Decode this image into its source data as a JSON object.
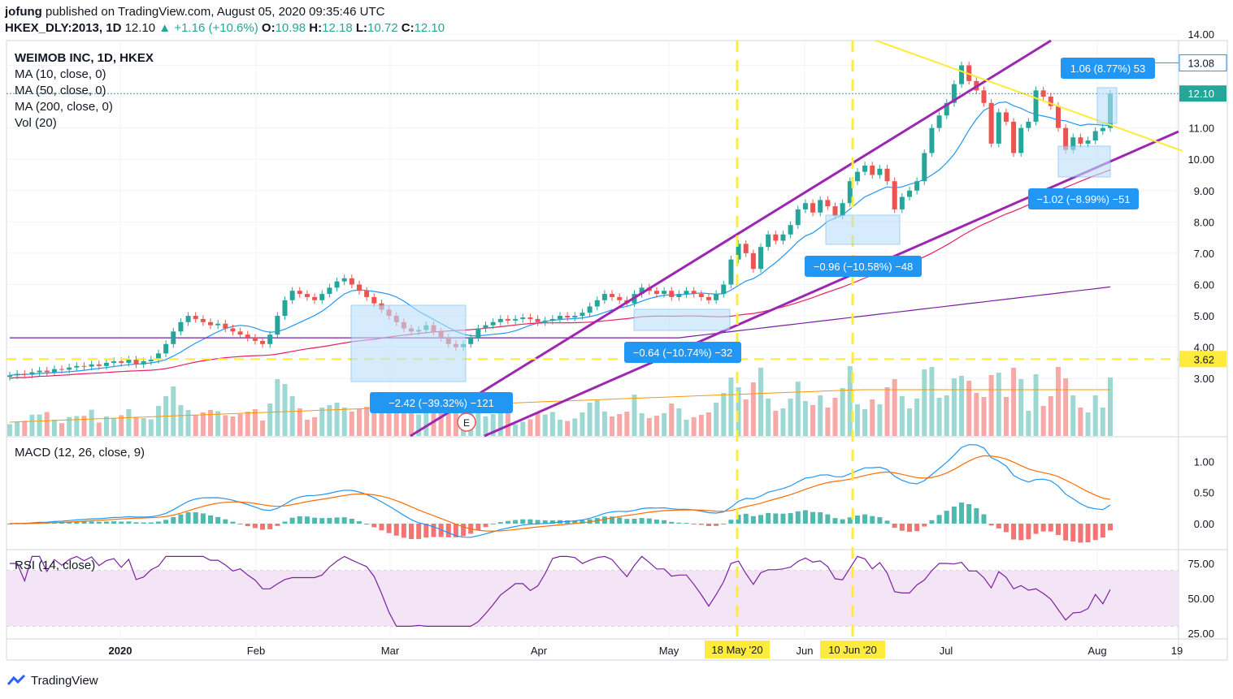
{
  "header": {
    "author": "jofung",
    "published_text": "published on TradingView.com, August 05, 2020 09:35:46 UTC",
    "symbol": "HKEX_DLY:2013, 1D",
    "last": "12.10",
    "change_arrow": "▲",
    "change": "+1.16 (+10.6%)",
    "o_label": "O:",
    "o": "10.98",
    "h_label": "H:",
    "h": "12.18",
    "l_label": "L:",
    "l": "10.72",
    "c_label": "C:",
    "c": "12.10"
  },
  "legend": {
    "title": "WEIMOB INC, 1D, HKEX",
    "ma10": "MA (10, close, 0)",
    "ma50": "MA (50, close, 0)",
    "ma200": "MA (200, close, 0)",
    "vol": "Vol (20)",
    "macd": "MACD (12, 26, close, 9)",
    "rsi": "RSI (14, close)"
  },
  "footer": {
    "brand": "TradingView"
  },
  "colors": {
    "up": "#26a69a",
    "down": "#ef5350",
    "ma10": "#2196f3",
    "ma50": "#e91e63",
    "ma200": "#7b1fa2",
    "trend": "#9c27b0",
    "yellow": "#ffeb3b",
    "macd": "#2196f3",
    "signal": "#ff6d00",
    "rsi": "#7b1fa2"
  },
  "chart_data": {
    "type": "candlestick",
    "title": "WEIMOB INC, 1D, HKEX",
    "price_ticks": [
      "14.00",
      "13.00",
      "12.00",
      "11.00",
      "10.00",
      "9.00",
      "8.00",
      "7.00",
      "6.00",
      "5.00",
      "4.00",
      "3.00"
    ],
    "price_range": [
      2.0,
      14.7
    ],
    "price_labels": [
      {
        "text": "13.08",
        "value": 13.08,
        "color": "#2196f3"
      },
      {
        "text": "12.10",
        "value": 12.1,
        "color": "#26a69a"
      },
      {
        "text": "3.62",
        "value": 3.62,
        "color": "#ffeb3b"
      }
    ],
    "x_ticks": [
      "2020",
      "Feb",
      "Mar",
      "Apr",
      "May",
      "Jun",
      "Jul",
      "Aug",
      "19"
    ],
    "date_labels": [
      "18 May '20",
      "10 Jun '20"
    ],
    "measurements": [
      "−2.42 (−39.32%) −121",
      "−0.64 (−10.74%) −32",
      "−0.96 (−10.58%) −48",
      "−1.02 (−8.99%) −51",
      "1.06 (8.77%) 53"
    ],
    "event_marker": "E",
    "closes": [
      3.1,
      3.15,
      3.12,
      3.2,
      3.25,
      3.2,
      3.3,
      3.28,
      3.35,
      3.4,
      3.38,
      3.45,
      3.4,
      3.5,
      3.55,
      3.5,
      3.6,
      3.45,
      3.55,
      3.6,
      3.8,
      4.1,
      4.5,
      4.8,
      5.0,
      4.9,
      4.8,
      4.7,
      4.75,
      4.6,
      4.5,
      4.4,
      4.3,
      4.2,
      4.1,
      4.4,
      5.0,
      5.5,
      5.8,
      5.7,
      5.6,
      5.5,
      5.7,
      5.9,
      6.1,
      6.2,
      6.0,
      5.8,
      5.6,
      5.4,
      5.2,
      5.0,
      4.8,
      4.6,
      4.5,
      4.55,
      4.7,
      4.5,
      4.3,
      4.1,
      4.0,
      4.1,
      4.3,
      4.6,
      4.7,
      4.8,
      4.9,
      4.85,
      4.9,
      4.95,
      4.9,
      4.8,
      4.85,
      4.9,
      5.0,
      4.95,
      5.0,
      5.1,
      5.3,
      5.5,
      5.7,
      5.6,
      5.5,
      5.4,
      5.7,
      5.9,
      5.8,
      5.7,
      5.8,
      5.6,
      5.7,
      5.8,
      5.7,
      5.6,
      5.5,
      5.7,
      6.0,
      6.8,
      7.3,
      7.0,
      6.5,
      7.2,
      7.6,
      7.4,
      7.6,
      7.9,
      8.4,
      8.6,
      8.3,
      8.7,
      8.5,
      8.2,
      8.6,
      9.3,
      9.6,
      9.8,
      9.5,
      9.7,
      9.3,
      8.4,
      8.8,
      9.0,
      9.3,
      10.2,
      11.0,
      11.4,
      11.8,
      12.4,
      13.0,
      12.5,
      12.2,
      11.8,
      10.5,
      11.5,
      11.2,
      10.2,
      11.0,
      11.2,
      12.2,
      12.0,
      11.7,
      11.0,
      10.3,
      10.7,
      10.5,
      10.6,
      10.9,
      11.0,
      12.1
    ],
    "volume_ticks": [],
    "macd_ticks": [
      "1.00",
      "0.50",
      "0.00"
    ],
    "rsi_ticks": [
      "75.00",
      "50.00",
      "25.00"
    ]
  }
}
